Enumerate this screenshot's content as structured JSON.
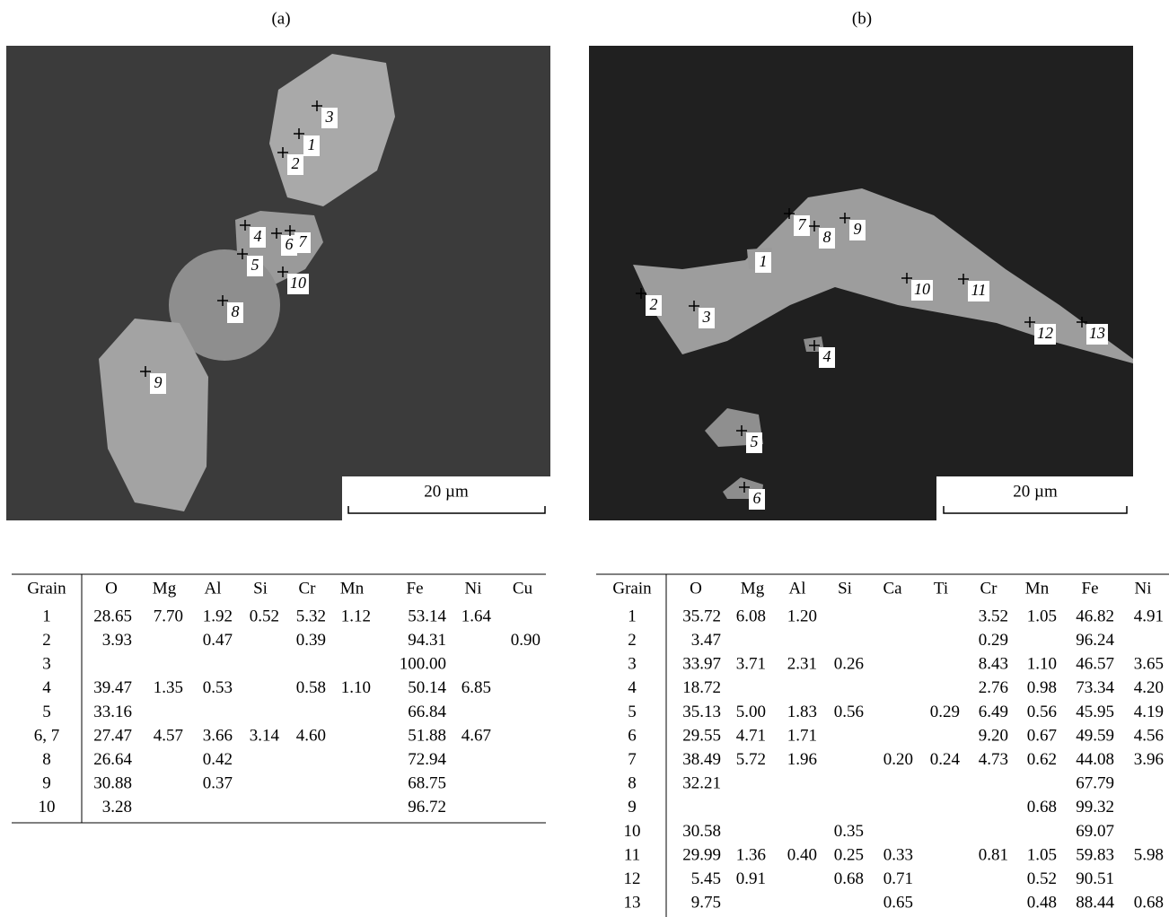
{
  "panels": [
    {
      "label": "(a)",
      "scale_bar": "20 µm",
      "points": [
        "1",
        "2",
        "3",
        "4",
        "5",
        "6",
        "7",
        "8",
        "9",
        "10"
      ]
    },
    {
      "label": "(b)",
      "scale_bar": "20 µm",
      "points": [
        "1",
        "2",
        "3",
        "4",
        "5",
        "6",
        "7",
        "8",
        "9",
        "10",
        "11",
        "12",
        "13"
      ]
    }
  ],
  "tables": [
    {
      "header": [
        "Grain",
        "O",
        "Mg",
        "Al",
        "Si",
        "Cr",
        "Mn",
        "Fe",
        "Ni",
        "Cu"
      ],
      "rows": [
        [
          "1",
          "28.65",
          "7.70",
          "1.92",
          "0.52",
          "5.32",
          "1.12",
          "53.14",
          "1.64",
          null
        ],
        [
          "2",
          "3.93",
          null,
          "0.47",
          null,
          "0.39",
          null,
          "94.31",
          null,
          "0.90"
        ],
        [
          "3",
          null,
          null,
          null,
          null,
          null,
          null,
          "100.00",
          null,
          null
        ],
        [
          "4",
          "39.47",
          "1.35",
          "0.53",
          null,
          "0.58",
          "1.10",
          "50.14",
          "6.85",
          null
        ],
        [
          "5",
          "33.16",
          null,
          null,
          null,
          null,
          null,
          "66.84",
          null,
          null
        ],
        [
          "6, 7",
          "27.47",
          "4.57",
          "3.66",
          "3.14",
          "4.60",
          null,
          "51.88",
          "4.67",
          null
        ],
        [
          "8",
          "26.64",
          null,
          "0.42",
          null,
          null,
          null,
          "72.94",
          null,
          null
        ],
        [
          "9",
          "30.88",
          null,
          "0.37",
          null,
          null,
          null,
          "68.75",
          null,
          null
        ],
        [
          "10",
          "3.28",
          null,
          null,
          null,
          null,
          null,
          "96.72",
          null,
          null
        ]
      ]
    },
    {
      "header": [
        "Grain",
        "O",
        "Mg",
        "Al",
        "Si",
        "Ca",
        "Ti",
        "Cr",
        "Mn",
        "Fe",
        "Ni"
      ],
      "rows": [
        [
          "1",
          "35.72",
          "6.08",
          "1.20",
          null,
          null,
          null,
          "3.52",
          "1.05",
          "46.82",
          "4.91"
        ],
        [
          "2",
          "3.47",
          null,
          null,
          null,
          null,
          null,
          "0.29",
          null,
          "96.24",
          null
        ],
        [
          "3",
          "33.97",
          "3.71",
          "2.31",
          "0.26",
          null,
          null,
          "8.43",
          "1.10",
          "46.57",
          "3.65"
        ],
        [
          "4",
          "18.72",
          null,
          null,
          null,
          null,
          null,
          "2.76",
          "0.98",
          "73.34",
          "4.20"
        ],
        [
          "5",
          "35.13",
          "5.00",
          "1.83",
          "0.56",
          null,
          "0.29",
          "6.49",
          "0.56",
          "45.95",
          "4.19"
        ],
        [
          "6",
          "29.55",
          "4.71",
          "1.71",
          null,
          null,
          null,
          "9.20",
          "0.67",
          "49.59",
          "4.56"
        ],
        [
          "7",
          "38.49",
          "5.72",
          "1.96",
          null,
          "0.20",
          "0.24",
          "4.73",
          "0.62",
          "44.08",
          "3.96"
        ],
        [
          "8",
          "32.21",
          null,
          null,
          null,
          null,
          null,
          null,
          null,
          "67.79",
          null
        ],
        [
          "9",
          null,
          null,
          null,
          null,
          null,
          null,
          null,
          "0.68",
          "99.32",
          null
        ],
        [
          "10",
          "30.58",
          null,
          null,
          "0.35",
          null,
          null,
          null,
          null,
          "69.07",
          null
        ],
        [
          "11",
          "29.99",
          "1.36",
          "0.40",
          "0.25",
          "0.33",
          null,
          "0.81",
          "1.05",
          "59.83",
          "5.98"
        ],
        [
          "12",
          "5.45",
          "0.91",
          null,
          "0.68",
          "0.71",
          null,
          null,
          "0.52",
          "90.51",
          null
        ],
        [
          "13",
          "9.75",
          null,
          null,
          null,
          "0.65",
          null,
          null,
          "0.48",
          "88.44",
          "0.68"
        ]
      ]
    }
  ]
}
